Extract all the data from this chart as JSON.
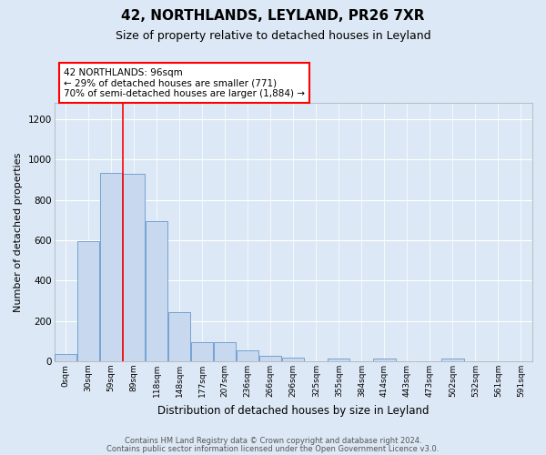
{
  "title": "42, NORTHLANDS, LEYLAND, PR26 7XR",
  "subtitle": "Size of property relative to detached houses in Leyland",
  "xlabel": "Distribution of detached houses by size in Leyland",
  "ylabel": "Number of detached properties",
  "bar_labels": [
    "0sqm",
    "30sqm",
    "59sqm",
    "89sqm",
    "118sqm",
    "148sqm",
    "177sqm",
    "207sqm",
    "236sqm",
    "266sqm",
    "296sqm",
    "325sqm",
    "355sqm",
    "384sqm",
    "414sqm",
    "443sqm",
    "473sqm",
    "502sqm",
    "532sqm",
    "561sqm",
    "591sqm"
  ],
  "bar_values": [
    35,
    595,
    935,
    930,
    695,
    243,
    97,
    97,
    52,
    25,
    18,
    0,
    12,
    0,
    12,
    0,
    0,
    12,
    0,
    0,
    0
  ],
  "bar_color": "#c8d8ee",
  "bar_edge_color": "#6699cc",
  "redline_x": 2.5,
  "annotation_text": "42 NORTHLANDS: 96sqm\n← 29% of detached houses are smaller (771)\n70% of semi-detached houses are larger (1,884) →",
  "ylim": [
    0,
    1280
  ],
  "yticks": [
    0,
    200,
    400,
    600,
    800,
    1000,
    1200
  ],
  "footer_line1": "Contains HM Land Registry data © Crown copyright and database right 2024.",
  "footer_line2": "Contains public sector information licensed under the Open Government Licence v3.0.",
  "title_fontsize": 11,
  "subtitle_fontsize": 9,
  "ylabel_fontsize": 8,
  "xlabel_fontsize": 8.5,
  "tick_fontsize": 6.5,
  "footer_fontsize": 6,
  "bg_color": "#dce8f5",
  "plot_bg_color": "#dce8f5",
  "grid_color": "#ffffff",
  "ann_fontsize": 7.5
}
